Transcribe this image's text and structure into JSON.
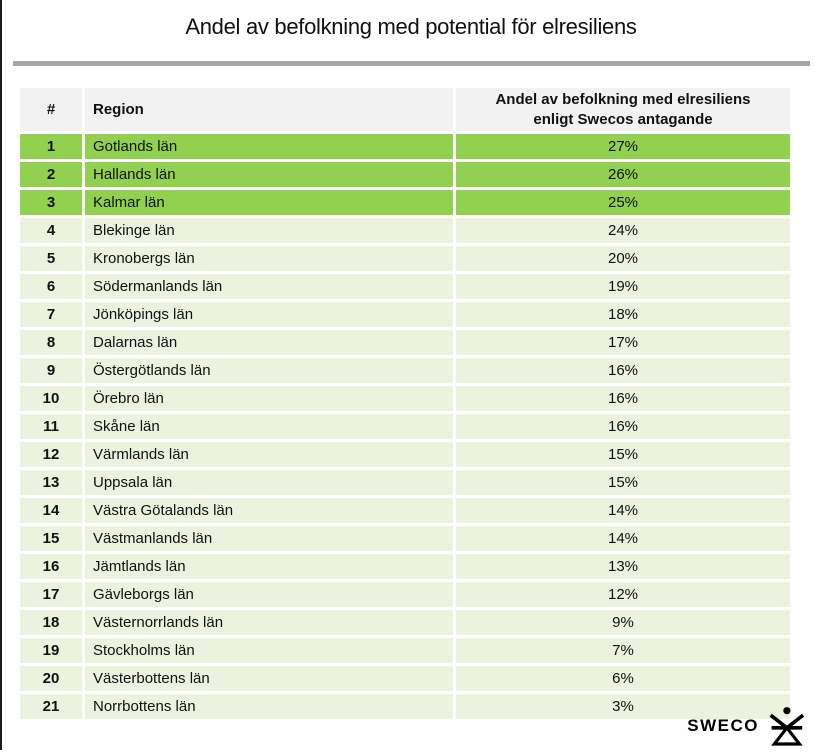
{
  "page": {
    "title": "Andel av befolkning med potential för elresiliens"
  },
  "colors": {
    "highlight_green": "#92d050",
    "row_green": "#ebf3de",
    "header_gray": "#f2f2f2",
    "rule_gray": "#a6a6a6"
  },
  "table": {
    "columns": [
      {
        "key": "rank",
        "label": "#"
      },
      {
        "key": "region",
        "label": "Region"
      },
      {
        "key": "share",
        "label": "Andel av befolkning med elresiliens enligt Swecos antagande",
        "label_line1": "Andel av befolkning med elresiliens",
        "label_line2": "enligt Swecos antagande"
      }
    ],
    "rows": [
      {
        "rank": "1",
        "region": "Gotlands län",
        "share": "27%",
        "highlighted": true
      },
      {
        "rank": "2",
        "region": "Hallands län",
        "share": "26%",
        "highlighted": true
      },
      {
        "rank": "3",
        "region": "Kalmar län",
        "share": "25%",
        "highlighted": true
      },
      {
        "rank": "4",
        "region": "Blekinge län",
        "share": "24%",
        "highlighted": false
      },
      {
        "rank": "5",
        "region": "Kronobergs län",
        "share": "20%",
        "highlighted": false
      },
      {
        "rank": "6",
        "region": "Södermanlands län",
        "share": "19%",
        "highlighted": false
      },
      {
        "rank": "7",
        "region": "Jönköpings län",
        "share": "18%",
        "highlighted": false
      },
      {
        "rank": "8",
        "region": "Dalarnas län",
        "share": "17%",
        "highlighted": false
      },
      {
        "rank": "9",
        "region": "Östergötlands län",
        "share": "16%",
        "highlighted": false
      },
      {
        "rank": "10",
        "region": "Örebro län",
        "share": "16%",
        "highlighted": false
      },
      {
        "rank": "11",
        "region": "Skåne län",
        "share": "16%",
        "highlighted": false
      },
      {
        "rank": "12",
        "region": "Värmlands län",
        "share": "15%",
        "highlighted": false
      },
      {
        "rank": "13",
        "region": "Uppsala län",
        "share": "15%",
        "highlighted": false
      },
      {
        "rank": "14",
        "region": "Västra Götalands län",
        "share": "14%",
        "highlighted": false
      },
      {
        "rank": "15",
        "region": "Västmanlands län",
        "share": "14%",
        "highlighted": false
      },
      {
        "rank": "16",
        "region": "Jämtlands län",
        "share": "13%",
        "highlighted": false
      },
      {
        "rank": "17",
        "region": "Gävleborgs län",
        "share": "12%",
        "highlighted": false
      },
      {
        "rank": "18",
        "region": "Västernorrlands län",
        "share": "9%",
        "highlighted": false
      },
      {
        "rank": "19",
        "region": "Stockholms län",
        "share": "7%",
        "highlighted": false
      },
      {
        "rank": "20",
        "region": "Västerbottens län",
        "share": "6%",
        "highlighted": false
      },
      {
        "rank": "21",
        "region": "Norrbottens län",
        "share": "3%",
        "highlighted": false
      }
    ]
  },
  "footer": {
    "brand": "SWECO",
    "logo_icon": "sweco-figure-icon"
  },
  "chart_data": {
    "type": "table",
    "title": "Andel av befolkning med potential för elresiliens",
    "columns": [
      "#",
      "Region",
      "Andel av befolkning med elresiliens enligt Swecos antagande"
    ],
    "categories": [
      "Gotlands län",
      "Hallands län",
      "Kalmar län",
      "Blekinge län",
      "Kronobergs län",
      "Södermanlands län",
      "Jönköpings län",
      "Dalarnas län",
      "Östergötlands län",
      "Örebro län",
      "Skåne län",
      "Värmlands län",
      "Uppsala län",
      "Västra Götalands län",
      "Västmanlands län",
      "Jämtlands län",
      "Gävleborgs län",
      "Västernorrlands län",
      "Stockholms län",
      "Västerbottens län",
      "Norrbottens län"
    ],
    "values": [
      27,
      26,
      25,
      24,
      20,
      19,
      18,
      17,
      16,
      16,
      16,
      15,
      15,
      14,
      14,
      13,
      12,
      9,
      7,
      6,
      3
    ],
    "unit": "%",
    "highlighted_ranks": [
      1,
      2,
      3
    ]
  }
}
